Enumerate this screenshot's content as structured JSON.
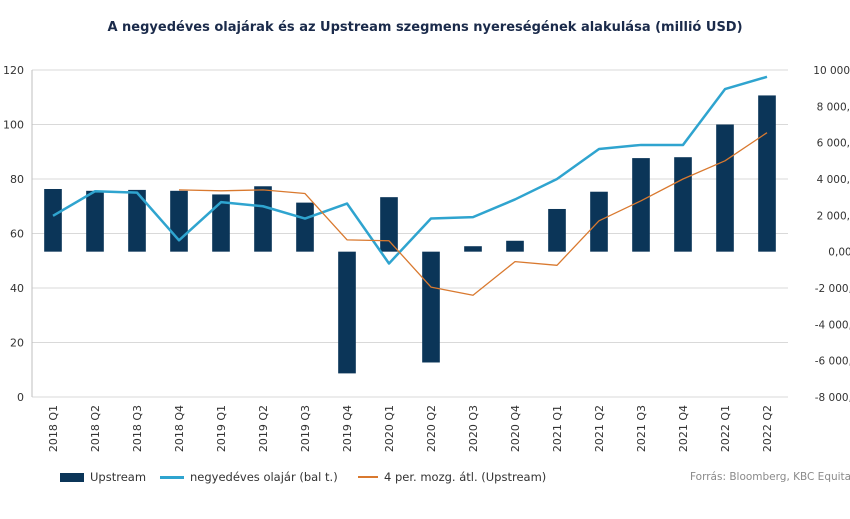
{
  "source": "Forrás: Bloomberg, KBC Equitas",
  "colors": {
    "bar": "#0b3558",
    "oil": "#2fa4cf",
    "ma": "#d9792f",
    "grid": "#d9d9d9"
  },
  "chart_data": {
    "type": "bar",
    "title": "A negyedéves olajárak és az Upstream szegmens nyereségének alakulása (millió USD)",
    "categories": [
      "2018 Q1",
      "2018 Q2",
      "2018 Q3",
      "2018 Q4",
      "2019 Q1",
      "2019 Q2",
      "2019 Q3",
      "2019 Q4",
      "2020 Q1",
      "2020 Q2",
      "2020 Q3",
      "2020 Q4",
      "2021 Q1",
      "2021 Q2",
      "2021 Q3",
      "2021 Q4",
      "2022 Q1",
      "2022 Q2"
    ],
    "series": [
      {
        "name": "Upstream",
        "axis": "right",
        "kind": "bar",
        "values": [
          3450,
          3350,
          3400,
          3350,
          3150,
          3600,
          2700,
          -6700,
          3000,
          -6100,
          300,
          600,
          2350,
          3300,
          5150,
          5200,
          7000,
          8600
        ]
      },
      {
        "name": "negyedéves olajár (bal t.)",
        "axis": "left",
        "kind": "line",
        "values": [
          66.5,
          75.5,
          75,
          57.5,
          71.5,
          70,
          65.5,
          71,
          49,
          65.5,
          66,
          72.5,
          80,
          91,
          92.5,
          92.5,
          113,
          117.5
        ]
      },
      {
        "name": "4 per. mozg. átl. (Upstream)",
        "axis": "right",
        "kind": "line",
        "values": [
          null,
          null,
          null,
          3400,
          3350,
          3400,
          3200,
          650,
          600,
          -1950,
          -2400,
          -550,
          -750,
          1700,
          2800,
          4000,
          5000,
          6550
        ]
      }
    ],
    "y_left": {
      "min": 0,
      "max": 120,
      "ticks": [
        "0",
        "20",
        "40",
        "60",
        "80",
        "100",
        "120"
      ]
    },
    "y_right": {
      "min": -8000,
      "max": 10000,
      "ticks": [
        "-8 000,00",
        "-6 000,00",
        "-4 000,00",
        "-2 000,00",
        "0,00",
        "2 000,00",
        "4 000,00",
        "6 000,00",
        "8 000,00",
        "10 000,00"
      ]
    },
    "grid": true,
    "legend_position": "bottom"
  }
}
